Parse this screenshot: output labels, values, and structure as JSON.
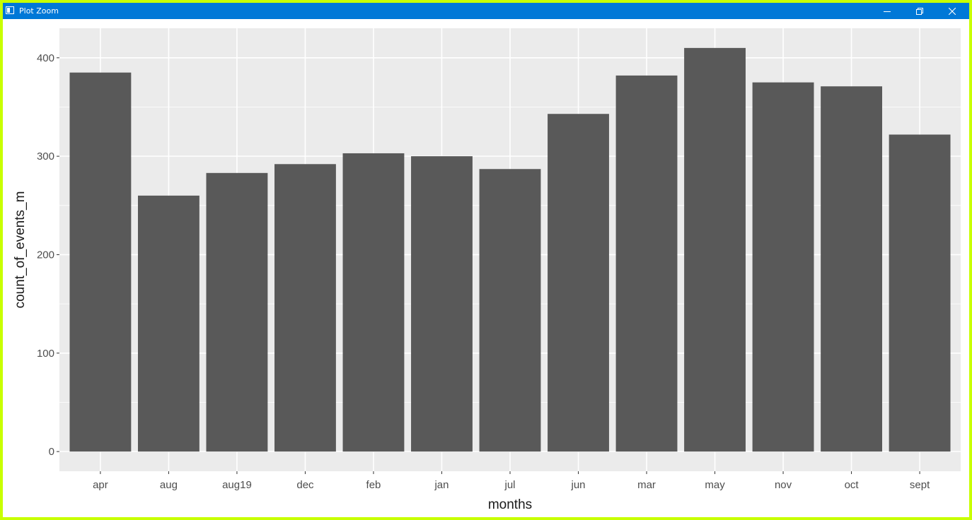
{
  "window": {
    "title": "Plot Zoom",
    "icon": "plot-window-icon",
    "controls": [
      "minimize-icon",
      "restore-icon",
      "close-icon"
    ]
  },
  "colors": {
    "frame": "#c8ff00",
    "titlebar": "#0078d7",
    "panel": "#ebebeb",
    "grid": "#ffffff",
    "bar": "#595959"
  },
  "chart_data": {
    "type": "bar",
    "categories": [
      "apr",
      "aug",
      "aug19",
      "dec",
      "feb",
      "jan",
      "jul",
      "jun",
      "mar",
      "may",
      "nov",
      "oct",
      "sept"
    ],
    "values": [
      385,
      260,
      283,
      292,
      303,
      300,
      287,
      343,
      382,
      410,
      375,
      371,
      322
    ],
    "xlabel": "months",
    "ylabel": "count_of_events_m",
    "ylim": [
      -20,
      430
    ],
    "yticks": [
      0,
      100,
      200,
      300,
      400
    ],
    "grid": true,
    "legend": "none"
  }
}
